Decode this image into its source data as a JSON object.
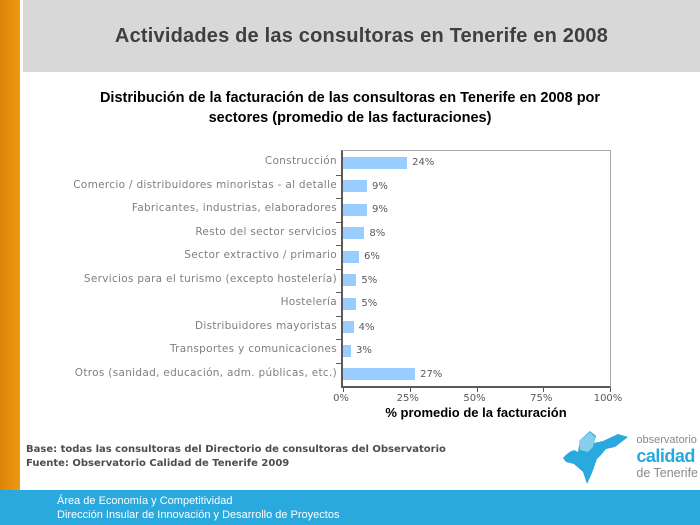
{
  "header": {
    "title": "Actividades de las consultoras en Tenerife en 2008"
  },
  "chart": {
    "title_lines": [
      "Distribución de la facturación de las consultoras en Tenerife en 2008 por",
      "sectores (promedio de las facturaciones)"
    ]
  },
  "chart_data": {
    "type": "bar",
    "orientation": "horizontal",
    "title": "Distribución de la facturación de las consultoras en Tenerife en 2008 por sectores (promedio de las facturaciones)",
    "categories": [
      "Construcción",
      "Comercio / distribuidores minoristas - al detalle",
      "Fabricantes, industrias, elaboradores",
      "Resto del sector servicios",
      "Sector extractivo / primario",
      "Servicios para el turismo (excepto hostelería)",
      "Hostelería",
      "Distribuidores mayoristas",
      "Transportes y comunicaciones",
      "Otros (sanidad, educación, adm. públicas, etc.)"
    ],
    "values": [
      24,
      9,
      9,
      8,
      6,
      5,
      5,
      4,
      3,
      27
    ],
    "value_labels": [
      "24%",
      "9%",
      "9%",
      "8%",
      "6%",
      "5%",
      "5%",
      "4%",
      "3%",
      "27%"
    ],
    "xlabel": "% promedio de la facturación",
    "x_ticks": [
      "0%",
      "25%",
      "50%",
      "75%",
      "100%"
    ],
    "xlim": [
      0,
      100
    ],
    "grid": false,
    "legend": false,
    "bar_color": "#99ccff"
  },
  "footnote": {
    "base": "Base: todas las consultoras del Directorio de consultoras del Observatorio",
    "fuente": "Fuente: Observatorio Calidad de Tenerife 2009"
  },
  "logo": {
    "line1": "observatorio",
    "line2": "calidad",
    "line3": "de Tenerife"
  },
  "footer": {
    "line1": "Área de Economía y Competitividad",
    "line2": "Dirección Insular de Innovación y Desarrollo de Proyectos"
  },
  "colors": {
    "left_accent_orange": "#e78c0e",
    "header_background": "#d8d8d8",
    "header_title_text": "#3f3f3f",
    "bar_fill": "#99ccff",
    "axis_line": "#595959",
    "category_label_text": "#7f7f7f",
    "value_label_text": "#595959",
    "footnote_text": "#4d4d4d",
    "footer_bar_blue": "#29a9de",
    "logo_blue": "#29a9de",
    "logo_light_blue": "#87cdec",
    "logo_gray_text": "#8a8a8a"
  }
}
